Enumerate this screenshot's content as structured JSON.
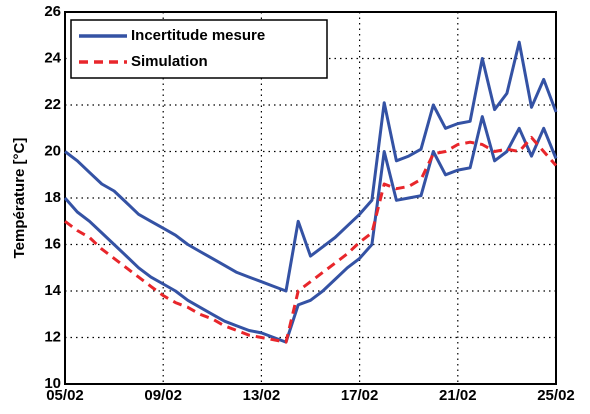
{
  "chart_data": {
    "type": "line",
    "y_label": "Température [°C]",
    "x": [
      5,
      5.5,
      6,
      6.5,
      7,
      7.5,
      8,
      8.5,
      9,
      9.5,
      10,
      10.5,
      11,
      11.5,
      12,
      12.5,
      13,
      13.5,
      14,
      14.5,
      15,
      15.5,
      16,
      16.5,
      17,
      17.5,
      18,
      18.5,
      19,
      19.5,
      20,
      20.5,
      21,
      21.5,
      22,
      22.5,
      23,
      23.5,
      24,
      24.5,
      25
    ],
    "series": [
      {
        "name": "Incertitude mesure",
        "color": "#3452a4",
        "dash": false,
        "values": [
          20.0,
          19.6,
          19.1,
          18.6,
          18.3,
          17.8,
          17.3,
          17.0,
          16.7,
          16.4,
          16.0,
          15.7,
          15.4,
          15.1,
          14.8,
          14.6,
          14.4,
          14.2,
          14.0,
          17.0,
          15.5,
          15.9,
          16.3,
          16.8,
          17.3,
          17.9,
          22.1,
          19.6,
          19.8,
          20.1,
          22.0,
          21.0,
          21.2,
          21.3,
          24.0,
          21.8,
          22.5,
          24.7,
          21.9,
          23.1,
          21.7
        ],
        "lower": [
          18.0,
          17.4,
          17.0,
          16.5,
          16.0,
          15.5,
          15.0,
          14.6,
          14.3,
          14.0,
          13.6,
          13.3,
          13.0,
          12.7,
          12.5,
          12.3,
          12.2,
          12.0,
          11.8,
          13.4,
          13.6,
          14.0,
          14.5,
          15.0,
          15.4,
          16.0,
          20.0,
          17.9,
          18.0,
          18.1,
          20.0,
          19.0,
          19.2,
          19.3,
          21.5,
          19.6,
          20.0,
          21.0,
          19.8,
          21.0,
          19.7
        ]
      },
      {
        "name": "Simulation",
        "color": "#e8262b",
        "dash": true,
        "values": [
          17.0,
          16.6,
          16.3,
          15.8,
          15.4,
          15.0,
          14.6,
          14.2,
          13.8,
          13.5,
          13.3,
          13.0,
          12.8,
          12.5,
          12.3,
          12.1,
          12.0,
          11.9,
          11.8,
          14.0,
          14.4,
          14.8,
          15.2,
          15.6,
          16.1,
          16.5,
          18.6,
          18.4,
          18.5,
          18.8,
          19.9,
          20.0,
          20.3,
          20.4,
          20.3,
          20.0,
          20.1,
          20.0,
          20.6,
          20.0,
          19.4
        ]
      }
    ],
    "xlim": [
      5,
      25
    ],
    "xticks": [
      {
        "value": 5,
        "label": "05/02"
      },
      {
        "value": 9,
        "label": "09/02"
      },
      {
        "value": 13,
        "label": "13/02"
      },
      {
        "value": 17,
        "label": "17/02"
      },
      {
        "value": 21,
        "label": "21/02"
      },
      {
        "value": 25,
        "label": "25/02"
      }
    ],
    "ylim": [
      10,
      26
    ],
    "yticks": [
      10,
      12,
      14,
      16,
      18,
      20,
      22,
      24,
      26
    ],
    "grid": true,
    "legend": "upper-left"
  }
}
